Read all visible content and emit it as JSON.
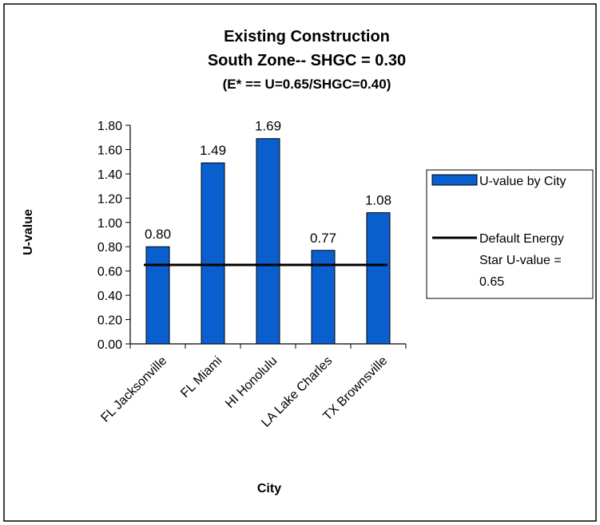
{
  "chart_data": {
    "type": "bar",
    "title": "Existing Construction",
    "title_line2": "South Zone-- SHGC = 0.30",
    "subtitle": "(E* == U=0.65/SHGC=0.40)",
    "xlabel": "City",
    "ylabel": "U-value",
    "categories": [
      "FL Jacksonville",
      "FL Miami",
      "HI Honolulu",
      "LA Lake Charles",
      "TX Brownsville"
    ],
    "series": [
      {
        "name": "U-value by City",
        "values": [
          0.8,
          1.49,
          1.69,
          0.77,
          1.08
        ],
        "color": "#0a5fce"
      }
    ],
    "data_labels": [
      "0.80",
      "1.49",
      "1.69",
      "0.77",
      "1.08"
    ],
    "reference_line": {
      "name_lines": [
        "Default Energy",
        "Star U-value =",
        "0.65"
      ],
      "value": 0.65,
      "color": "#000000"
    },
    "ylim": [
      0,
      1.8
    ],
    "yticks": [
      0.0,
      0.2,
      0.4,
      0.6,
      0.8,
      1.0,
      1.2,
      1.4,
      1.6,
      1.8
    ],
    "ytick_labels": [
      "0.00",
      "0.20",
      "0.40",
      "0.60",
      "0.80",
      "1.00",
      "1.20",
      "1.40",
      "1.60",
      "1.80"
    ],
    "grid": false,
    "legend_position": "right"
  }
}
